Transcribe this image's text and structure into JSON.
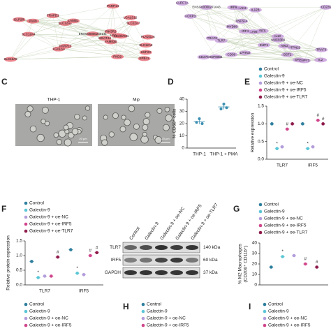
{
  "network": {
    "left_nodes": [
      "SLC12A9",
      "TRAFD1",
      "LGALS9B",
      "LGALS9",
      "CEACAM1",
      "FAM83E",
      "LGALS12",
      "PARP12",
      "PARP14",
      "PIK3R2",
      "USP20",
      "SLC12A4",
      "SLC12A2",
      "MGAT4A",
      "EPB41",
      "SLC12A6",
      "SLC12A7",
      "PAX8",
      "LAMB1",
      "PLA2G2A",
      "PKD2",
      "GLP2R",
      "ENSG00000249141"
    ],
    "right_nodes": [
      "FOXP3",
      "SPG7",
      "CD274",
      "IL12B",
      "TRAF3",
      "ENSG00000271043",
      "TLR7",
      "IRF5",
      "CD226",
      "TNFSF4",
      "CLEC7A",
      "IRAK3",
      "HSP90B1",
      "PTPN22",
      "LPHN2",
      "TRAF6",
      "IL10",
      "MYD88",
      "LY96",
      "IKZF1",
      "UNC93B1",
      "BST2",
      "CNPY3",
      "IRF4",
      "IL2",
      "IRF9",
      "CD38",
      "AIM2"
    ]
  },
  "panel_c": {
    "label": "C",
    "images": [
      {
        "title": "THP-1",
        "scale": "20 μm"
      },
      {
        "title": "Mφ",
        "scale": "20 μm"
      }
    ]
  },
  "blot": {
    "columns": [
      "Control",
      "Galectin-9",
      "Galectin-9 + oe-NC",
      "Galectin-9 + oe-IRF5",
      "Galectin-9 + oe-TLR7"
    ],
    "rows": [
      {
        "protein": "TLR7",
        "size": "140 kDa"
      },
      {
        "protein": "IRF5",
        "size": "60 kDa"
      },
      {
        "protein": "GAPDH",
        "size": "37 kDa"
      }
    ]
  },
  "chart_data": [
    {
      "type": "dot",
      "label": "D",
      "ylabel": "% CD68⁺ cells",
      "categories": [
        "THP-1",
        "THP-1 + PMA"
      ],
      "color": "#3a8fb0",
      "values": [
        [
          21,
          24,
          20
        ],
        [
          32,
          36,
          33
        ]
      ],
      "ylim": [
        0,
        40
      ],
      "yticks": [
        0,
        10,
        20,
        30,
        40
      ]
    },
    {
      "type": "grouped",
      "label": "E",
      "ylabel": "Relative expression",
      "categories": [
        "TLR7",
        "IRF5"
      ],
      "series": [
        {
          "name": "Control",
          "color": "#2f7f9e",
          "values": [
            1.0,
            1.0
          ],
          "flags": [
            null,
            null
          ]
        },
        {
          "name": "Galectin-9",
          "color": "#5cc6d6",
          "values": [
            0.3,
            0.3
          ],
          "flags": [
            "*",
            "*"
          ]
        },
        {
          "name": "Galectin-9 + oe-NC",
          "color": "#b39ddb",
          "values": [
            0.35,
            0.35
          ],
          "flags": [
            null,
            null
          ]
        },
        {
          "name": "Galectin-9 + oe-IRF5",
          "color": "#d0468c",
          "values": [
            0.85,
            1.1
          ],
          "flags": [
            "#",
            "#"
          ]
        },
        {
          "name": "Galectin-9 + oe-TLR7",
          "color": "#8e1b4b",
          "values": [
            1.0,
            1.0
          ],
          "flags": [
            null,
            "#"
          ]
        }
      ],
      "ylim": [
        0,
        1.5
      ],
      "yticks": [
        {
          "value": 0,
          "label": "0.0"
        },
        {
          "value": 0.5,
          "label": "0.5"
        },
        {
          "value": 1,
          "label": "1.0"
        },
        {
          "value": 1.5,
          "label": "1.5"
        }
      ]
    },
    {
      "type": "grouped",
      "label": "F",
      "ylabel": "Relative protein expression",
      "categories": [
        "TLR7",
        "IRF5"
      ],
      "series": [
        {
          "name": "Control",
          "color": "#2f7f9e",
          "values": [
            0.8,
            1.2
          ],
          "flags": [
            null,
            null
          ]
        },
        {
          "name": "Galectin-9",
          "color": "#5cc6d6",
          "values": [
            0.25,
            0.4
          ],
          "flags": [
            "*",
            "*"
          ]
        },
        {
          "name": "Galectin-9 + oe-NC",
          "color": "#b39ddb",
          "values": [
            0.3,
            0.35
          ],
          "flags": [
            null,
            null
          ]
        },
        {
          "name": "Galectin-9 + oe-IRF5",
          "color": "#d0468c",
          "values": [
            0.3,
            1.0
          ],
          "flags": [
            null,
            "#"
          ]
        },
        {
          "name": "Galectin-9 + oe-TLR7",
          "color": "#8e1b4b",
          "values": [
            0.95,
            1.1
          ],
          "flags": [
            "#",
            "#"
          ]
        }
      ],
      "ylim": [
        0,
        1.5
      ],
      "yticks": [
        {
          "value": 0,
          "label": "0.0"
        },
        {
          "value": 0.5,
          "label": "0.5"
        },
        {
          "value": 1,
          "label": "1.0"
        },
        {
          "value": 1.5,
          "label": "1.5"
        }
      ]
    },
    {
      "type": "grouped",
      "label": "G",
      "ylabel": [
        "% M2 Macrophages",
        "(CD206⁺ CD11b⁺)"
      ],
      "categories": [
        null
      ],
      "series": [
        {
          "name": "Control",
          "color": "#2f7f9e",
          "values": [
            17
          ],
          "flags": [
            null
          ]
        },
        {
          "name": "Galectin-9",
          "color": "#5cc6d6",
          "values": [
            27
          ],
          "flags": [
            "*"
          ]
        },
        {
          "name": "Galectin-9 + oe-NC",
          "color": "#b39ddb",
          "values": [
            28
          ],
          "flags": [
            null
          ]
        },
        {
          "name": "Galectin-9 + oe-IRF5",
          "color": "#d0468c",
          "values": [
            20
          ],
          "flags": [
            "#"
          ]
        },
        {
          "name": "Galectin-9 + oe-TLR7",
          "color": "#8e1b4b",
          "values": [
            17
          ],
          "flags": [
            "#"
          ]
        }
      ],
      "ylim": [
        0,
        40
      ],
      "yticks": [
        0,
        10,
        20,
        30,
        40
      ]
    }
  ],
  "partial_panels": [
    {
      "legend": [
        "Control",
        "Galectin-9",
        "Galectin-9 + oe-NC",
        "Galectin-9 + oe-IRF5"
      ]
    },
    {
      "label": "H",
      "legend": [
        "Control",
        "Galectin-9",
        "Galectin-9 + oe-NC",
        "Galectin-9 + oe-IRF5"
      ]
    },
    {
      "label": "I",
      "legend": [
        "Control",
        "Galectin-9",
        "Galectin-9 + oe-NC",
        "Galectin-9 + oe-IRF5"
      ]
    }
  ]
}
